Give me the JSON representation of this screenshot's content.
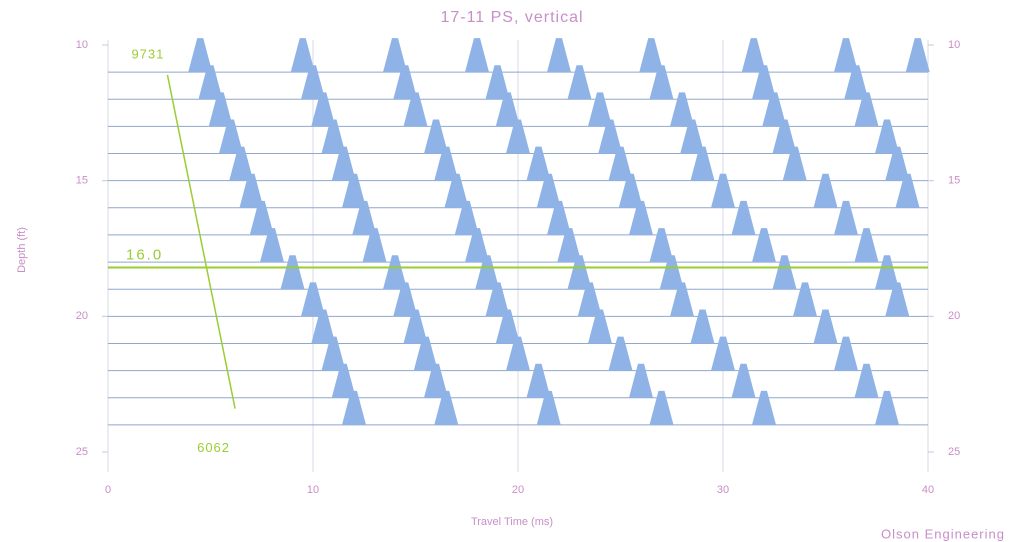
{
  "chart_data": {
    "type": "wiggle",
    "title": "17-11 PS, vertical",
    "x_label": "Travel Time (ms)",
    "y_label": "Depth (ft)",
    "credit": "Olson Engineering",
    "xlim": [
      0,
      40
    ],
    "xticks": [
      0,
      10,
      20,
      30,
      40
    ],
    "ylim": [
      10,
      25
    ],
    "yticks": [
      10,
      15,
      20,
      25
    ],
    "y2lim": [
      10,
      25
    ],
    "y2ticks": [
      10,
      15,
      20,
      25
    ],
    "fill_color": "#8fb3e6",
    "annotation_color": "#9acd32",
    "text_color": "#c78fc7",
    "traces": [
      {
        "depth": 11,
        "peaks": [
          4.5,
          9.5,
          14,
          18,
          22,
          26.5,
          31.5,
          36,
          39.5
        ]
      },
      {
        "depth": 12,
        "peaks": [
          5,
          10,
          14.5,
          19,
          23,
          27,
          32,
          36.5
        ]
      },
      {
        "depth": 13,
        "peaks": [
          5.5,
          10.5,
          15,
          19.5,
          24,
          28,
          32.5,
          37
        ]
      },
      {
        "depth": 14,
        "peaks": [
          6,
          11,
          16,
          20,
          24.5,
          28.5,
          33,
          38
        ]
      },
      {
        "depth": 15,
        "peaks": [
          6.5,
          11.5,
          16.5,
          21,
          25,
          29,
          33.5,
          38.5
        ]
      },
      {
        "depth": 16,
        "peaks": [
          7,
          12,
          17,
          21.5,
          25.5,
          30,
          35,
          39
        ]
      },
      {
        "depth": 17,
        "peaks": [
          7.5,
          12.5,
          17.5,
          22,
          26,
          31,
          36
        ]
      },
      {
        "depth": 18,
        "peaks": [
          8,
          13,
          18,
          22.5,
          27,
          32,
          37
        ]
      },
      {
        "depth": 19,
        "peaks": [
          9,
          14,
          18.5,
          23,
          27.5,
          33,
          38
        ]
      },
      {
        "depth": 20,
        "peaks": [
          10,
          14.5,
          19,
          23.5,
          28,
          34,
          38.5
        ]
      },
      {
        "depth": 21,
        "peaks": [
          10.5,
          15,
          19.5,
          24,
          29,
          35
        ]
      },
      {
        "depth": 22,
        "peaks": [
          11,
          15.5,
          20,
          25,
          30,
          36
        ]
      },
      {
        "depth": 23,
        "peaks": [
          11.5,
          16,
          21,
          26,
          31,
          37
        ]
      },
      {
        "depth": 24,
        "peaks": [
          12,
          16.5,
          21.5,
          27,
          32,
          38
        ]
      }
    ],
    "marker_line": {
      "text": "16.0",
      "depth": 18.2
    },
    "pick_line": {
      "x": [
        2.9,
        6.2
      ],
      "depth": [
        11.1,
        23.4
      ],
      "start_label": "9731",
      "end_label": "6062"
    }
  }
}
